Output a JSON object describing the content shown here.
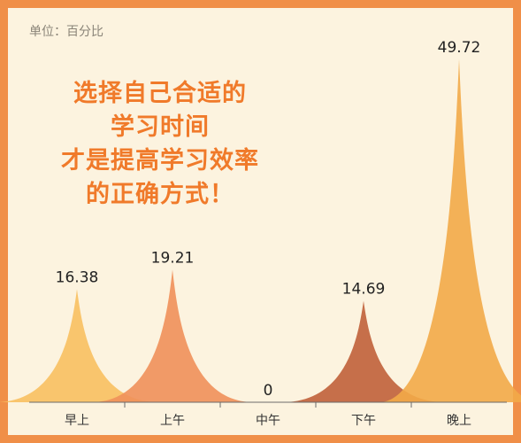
{
  "unit_label": "单位：百分比",
  "headline": [
    "选择自己合适的",
    "学习时间",
    "才是提高学习效率",
    "的正确方式！"
  ],
  "colors": {
    "border": "#f08f48",
    "background": "#fcf3df",
    "headline": "#f07a2a",
    "series": [
      "#f8c060",
      "#f0905a",
      "#e89a50",
      "#c0603a",
      "#f2aa48"
    ]
  },
  "chart_data": {
    "type": "area",
    "categories": [
      "早上",
      "上午",
      "中午",
      "下午",
      "晚上"
    ],
    "values": [
      16.38,
      19.21,
      0,
      14.69,
      49.72
    ],
    "value_labels": [
      "16.38",
      "19.21",
      "0",
      "14.69",
      "49.72"
    ],
    "ylim": [
      0,
      52
    ],
    "grid": false,
    "legend": "none"
  }
}
